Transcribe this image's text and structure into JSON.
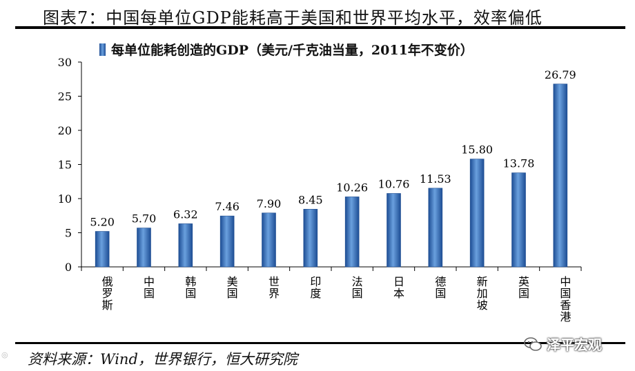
{
  "figure": {
    "title": "图表7：中国每单位GDP能耗高于美国和世界平均水平，效率偏低",
    "source": "资料来源：Wind，世界银行，恒大研究院",
    "watermark": "泽平宏观"
  },
  "colors": {
    "bar": "#3a74c0",
    "bar_edge": "#1f4e91",
    "axis": "#000000"
  },
  "chart_data": {
    "type": "bar",
    "legend": "每单位能耗创造的GDP（美元/千克油当量，2011年不变价）",
    "legend_position": "top",
    "categories": [
      "俄罗斯",
      "中国",
      "韩国",
      "美国",
      "世界",
      "印度",
      "法国",
      "日本",
      "德国",
      "新加坡",
      "英国",
      "中国香港"
    ],
    "series": [
      {
        "values": [
          5.2,
          5.7,
          6.32,
          7.46,
          7.9,
          8.45,
          10.26,
          10.76,
          11.53,
          15.8,
          13.78,
          26.79
        ]
      }
    ],
    "data_labels": [
      "5.20",
      "5.70",
      "6.32",
      "7.46",
      "7.90",
      "8.45",
      "10.26",
      "10.76",
      "11.53",
      "15.80",
      "13.78",
      "26.79"
    ],
    "ylim": [
      0,
      30
    ],
    "yticks": [
      "0",
      "5",
      "10",
      "15",
      "20",
      "25",
      "30"
    ],
    "grid": false,
    "xlabel": "",
    "ylabel": ""
  }
}
